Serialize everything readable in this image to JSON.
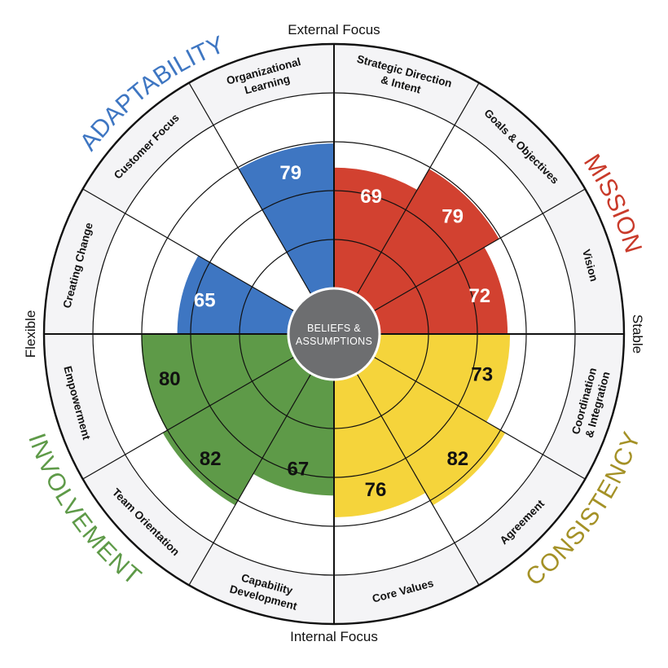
{
  "center": {
    "line1": "BELIEFS &",
    "line2": "ASSUMPTIONS",
    "color": "#6d6e70"
  },
  "axes": {
    "top": "External Focus",
    "bottom": "Internal Focus",
    "left": "Flexible",
    "right": "Stable"
  },
  "colors": {
    "band": "#f4f4f6",
    "outline": "#111111"
  },
  "traits": [
    {
      "name": "MISSION",
      "color": "#d24130",
      "text_color": "#c93a2a",
      "segments": [
        {
          "name": "Strategic Direction & Intent",
          "lines": [
            "Strategic Direction",
            "& Intent"
          ],
          "value": 69
        },
        {
          "name": "Goals & Objectives",
          "lines": [
            "Goals & Objectives"
          ],
          "value": 79
        },
        {
          "name": "Vision",
          "lines": [
            "Vision"
          ],
          "value": 72
        }
      ]
    },
    {
      "name": "CONSISTENCY",
      "color": "#f5d43b",
      "text_color": "#a49126",
      "segments": [
        {
          "name": "Coordination & Integration",
          "lines": [
            "Coordination",
            "& Integration"
          ],
          "value": 73
        },
        {
          "name": "Agreement",
          "lines": [
            "Agreement"
          ],
          "value": 82
        },
        {
          "name": "Core Values",
          "lines": [
            "Core Values"
          ],
          "value": 76
        }
      ]
    },
    {
      "name": "INVOLVEMENT",
      "color": "#5e9a48",
      "text_color": "#5e9a48",
      "segments": [
        {
          "name": "Capability Development",
          "lines": [
            "Capability",
            "Development"
          ],
          "value": 67
        },
        {
          "name": "Team Orientation",
          "lines": [
            "Team Orientation"
          ],
          "value": 82
        },
        {
          "name": "Empowerment",
          "lines": [
            "Empowerment"
          ],
          "value": 80
        }
      ]
    },
    {
      "name": "ADAPTABILITY",
      "color": "#3e76c2",
      "text_color": "#3e76c2",
      "segments": [
        {
          "name": "Creating Change",
          "lines": [
            "Creating Change"
          ],
          "value": 65
        },
        {
          "name": "Customer Focus",
          "lines": [
            "Customer Focus"
          ],
          "value": 0
        },
        {
          "name": "Organizational Learning",
          "lines": [
            "Organizational",
            "Learning"
          ],
          "value": 79
        }
      ]
    }
  ]
}
